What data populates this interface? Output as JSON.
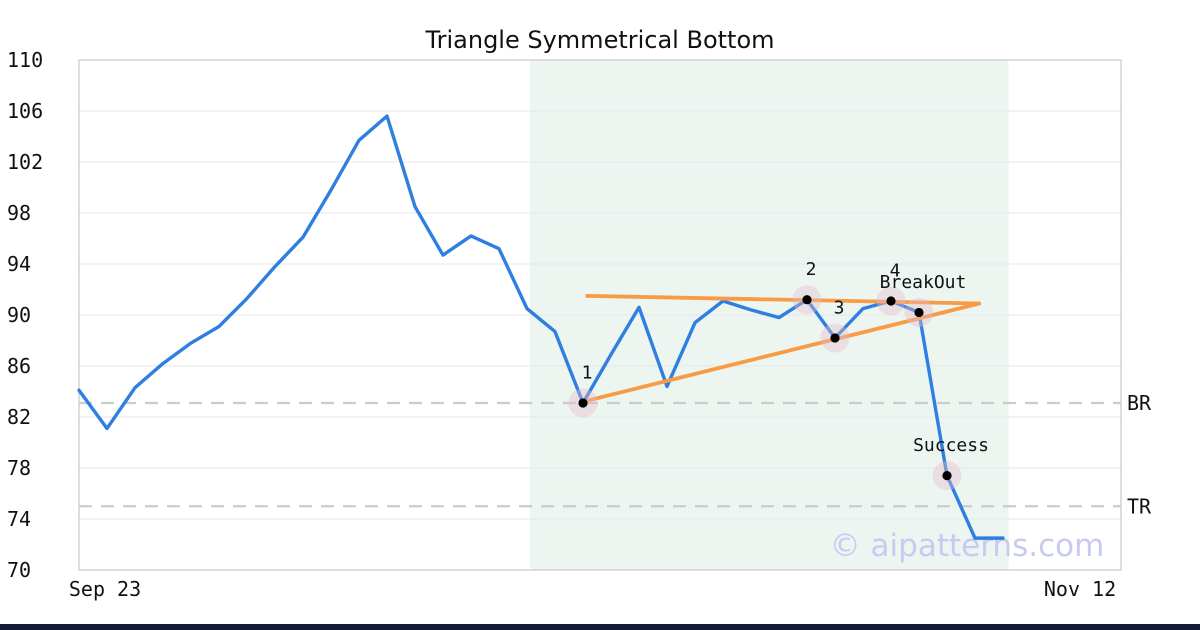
{
  "title": "Triangle Symmetrical Bottom",
  "watermark": "© aipatterns.com",
  "colors": {
    "price_line": "#2e7fe0",
    "trendline": "#f89b45",
    "shade": "#edf5f1",
    "grid": "#e7e7e7",
    "spine": "#cdcdcd",
    "dashed_level": "#cccccc",
    "marker_halo": "#e3bccb",
    "marker_dot": "#000000",
    "watermark": "#c7cbf2",
    "footer": "#131b36",
    "text": "#111111"
  },
  "chart_data": {
    "type": "line",
    "title": "Triangle Symmetrical Bottom",
    "legend": "none",
    "grid": "horizontal",
    "x_axis": {
      "start_label": "Sep 23",
      "end_label": "Nov 12"
    },
    "y_axis": {
      "min": 70,
      "max": 110,
      "ticks": [
        110,
        106,
        102,
        98,
        94,
        90,
        86,
        82,
        78,
        74,
        70
      ]
    },
    "series": {
      "name": "price",
      "values": [
        84.1,
        81.1,
        84.3,
        86.2,
        87.8,
        89.1,
        91.3,
        93.8,
        96.1,
        99.8,
        103.7,
        105.6,
        98.5,
        94.7,
        96.2,
        95.2,
        90.5,
        88.7,
        83.1,
        86.9,
        90.6,
        84.4,
        89.4,
        91.1,
        90.4,
        89.8,
        91.2,
        88.2,
        90.5,
        91.1,
        90.2,
        77.4,
        72.5,
        72.5
      ]
    },
    "shaded_region": {
      "from_index": 16.1,
      "to_index": 33.2
    },
    "trendlines": [
      {
        "name": "upper",
        "from": {
          "index": 18.15,
          "value": 91.5
        },
        "to": {
          "index": 32.15,
          "value": 90.9
        }
      },
      {
        "name": "lower",
        "from": {
          "index": 18.0,
          "value": 83.2
        },
        "to": {
          "index": 32.15,
          "value": 90.9
        }
      }
    ],
    "levels": [
      {
        "label": "BR",
        "value": 83.1
      },
      {
        "label": "TR",
        "value": 75.0
      }
    ],
    "markers": [
      {
        "label": "1",
        "index": 18,
        "value": 83.1
      },
      {
        "label": "2",
        "index": 26,
        "value": 91.2
      },
      {
        "label": "3",
        "index": 27,
        "value": 88.2
      },
      {
        "label": "4",
        "index": 29,
        "value": 91.1
      },
      {
        "label": "BreakOut",
        "index": 30,
        "value": 90.2
      },
      {
        "label": "Success",
        "index": 31,
        "value": 77.4
      }
    ]
  }
}
